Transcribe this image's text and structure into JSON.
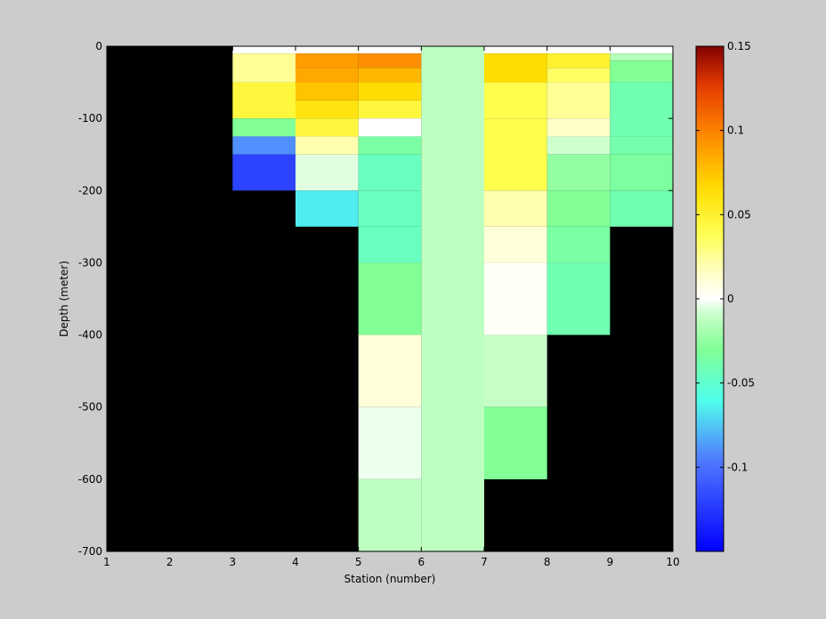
{
  "chart_data": {
    "type": "heatmap",
    "xlabel": "Station (number)",
    "ylabel": "Depth (meter)",
    "xlim": [
      1,
      10
    ],
    "ylim": [
      -700,
      0
    ],
    "x_ticks": [
      1,
      2,
      3,
      4,
      5,
      6,
      7,
      8,
      9,
      10
    ],
    "y_ticks": [
      0,
      -100,
      -200,
      -300,
      -400,
      -500,
      -600,
      -700
    ],
    "colorbar": {
      "range": [
        -0.15,
        0.15
      ],
      "ticks": [
        0.15,
        0.1,
        0.05,
        0,
        -0.05,
        -0.1
      ],
      "colormap": "jet-white-center"
    },
    "background_color": "#000000",
    "cells": [
      {
        "station": 3,
        "top": 0,
        "bottom": -10,
        "value": 0.0
      },
      {
        "station": 3,
        "top": -10,
        "bottom": -50,
        "value": 0.025
      },
      {
        "station": 3,
        "top": -50,
        "bottom": -100,
        "value": 0.045
      },
      {
        "station": 3,
        "top": -100,
        "bottom": -125,
        "value": -0.03
      },
      {
        "station": 3,
        "top": -125,
        "bottom": -150,
        "value": -0.09
      },
      {
        "station": 3,
        "top": -150,
        "bottom": -200,
        "value": -0.12
      },
      {
        "station": 4,
        "top": 0,
        "bottom": -10,
        "value": 0.0
      },
      {
        "station": 4,
        "top": -10,
        "bottom": -30,
        "value": 0.09
      },
      {
        "station": 4,
        "top": -30,
        "bottom": -50,
        "value": 0.085
      },
      {
        "station": 4,
        "top": -50,
        "bottom": -75,
        "value": 0.075
      },
      {
        "station": 4,
        "top": -75,
        "bottom": -100,
        "value": 0.06
      },
      {
        "station": 4,
        "top": -100,
        "bottom": -125,
        "value": 0.045
      },
      {
        "station": 4,
        "top": -125,
        "bottom": -150,
        "value": 0.02
      },
      {
        "station": 4,
        "top": -150,
        "bottom": -200,
        "value": -0.005
      },
      {
        "station": 4,
        "top": -200,
        "bottom": -250,
        "value": -0.065
      },
      {
        "station": 5,
        "top": 0,
        "bottom": -10,
        "value": 0.0
      },
      {
        "station": 5,
        "top": -10,
        "bottom": -30,
        "value": 0.095
      },
      {
        "station": 5,
        "top": -30,
        "bottom": -50,
        "value": 0.08
      },
      {
        "station": 5,
        "top": -50,
        "bottom": -75,
        "value": 0.065
      },
      {
        "station": 5,
        "top": -75,
        "bottom": -100,
        "value": 0.045
      },
      {
        "station": 5,
        "top": -100,
        "bottom": -125,
        "value": 0.0
      },
      {
        "station": 5,
        "top": -125,
        "bottom": -150,
        "value": -0.035
      },
      {
        "station": 5,
        "top": -150,
        "bottom": -200,
        "value": -0.045
      },
      {
        "station": 5,
        "top": -200,
        "bottom": -250,
        "value": -0.045
      },
      {
        "station": 5,
        "top": -250,
        "bottom": -300,
        "value": -0.045
      },
      {
        "station": 5,
        "top": -300,
        "bottom": -400,
        "value": -0.03
      },
      {
        "station": 5,
        "top": -400,
        "bottom": -500,
        "value": 0.01
      },
      {
        "station": 5,
        "top": -500,
        "bottom": -600,
        "value": -0.003
      },
      {
        "station": 5,
        "top": -600,
        "bottom": -700,
        "value": -0.012
      },
      {
        "station": 6,
        "top": 0,
        "bottom": -700,
        "value": -0.012
      },
      {
        "station": 7,
        "top": 0,
        "bottom": -10,
        "value": 0.0
      },
      {
        "station": 7,
        "top": -10,
        "bottom": -50,
        "value": 0.065
      },
      {
        "station": 7,
        "top": -50,
        "bottom": -100,
        "value": 0.04
      },
      {
        "station": 7,
        "top": -100,
        "bottom": -200,
        "value": 0.04
      },
      {
        "station": 7,
        "top": -200,
        "bottom": -250,
        "value": 0.02
      },
      {
        "station": 7,
        "top": -250,
        "bottom": -300,
        "value": 0.01
      },
      {
        "station": 7,
        "top": -300,
        "bottom": -400,
        "value": 0.002
      },
      {
        "station": 7,
        "top": -400,
        "bottom": -500,
        "value": -0.01
      },
      {
        "station": 7,
        "top": -500,
        "bottom": -600,
        "value": -0.03
      },
      {
        "station": 8,
        "top": 0,
        "bottom": -10,
        "value": 0.0
      },
      {
        "station": 8,
        "top": -10,
        "bottom": -30,
        "value": 0.05
      },
      {
        "station": 8,
        "top": -30,
        "bottom": -50,
        "value": 0.035
      },
      {
        "station": 8,
        "top": -50,
        "bottom": -100,
        "value": 0.025
      },
      {
        "station": 8,
        "top": -100,
        "bottom": -125,
        "value": 0.015
      },
      {
        "station": 8,
        "top": -125,
        "bottom": -150,
        "value": -0.008
      },
      {
        "station": 8,
        "top": -150,
        "bottom": -200,
        "value": -0.025
      },
      {
        "station": 8,
        "top": -200,
        "bottom": -250,
        "value": -0.03
      },
      {
        "station": 8,
        "top": -250,
        "bottom": -300,
        "value": -0.035
      },
      {
        "station": 8,
        "top": -300,
        "bottom": -400,
        "value": -0.04
      },
      {
        "station": 9,
        "top": 0,
        "bottom": -10,
        "value": 0.0
      },
      {
        "station": 9,
        "top": -10,
        "bottom": -20,
        "value": -0.015
      },
      {
        "station": 9,
        "top": -20,
        "bottom": -50,
        "value": -0.03
      },
      {
        "station": 9,
        "top": -50,
        "bottom": -125,
        "value": -0.04
      },
      {
        "station": 9,
        "top": -125,
        "bottom": -150,
        "value": -0.038
      },
      {
        "station": 9,
        "top": -150,
        "bottom": -200,
        "value": -0.033
      },
      {
        "station": 9,
        "top": -200,
        "bottom": -250,
        "value": -0.04
      }
    ]
  }
}
